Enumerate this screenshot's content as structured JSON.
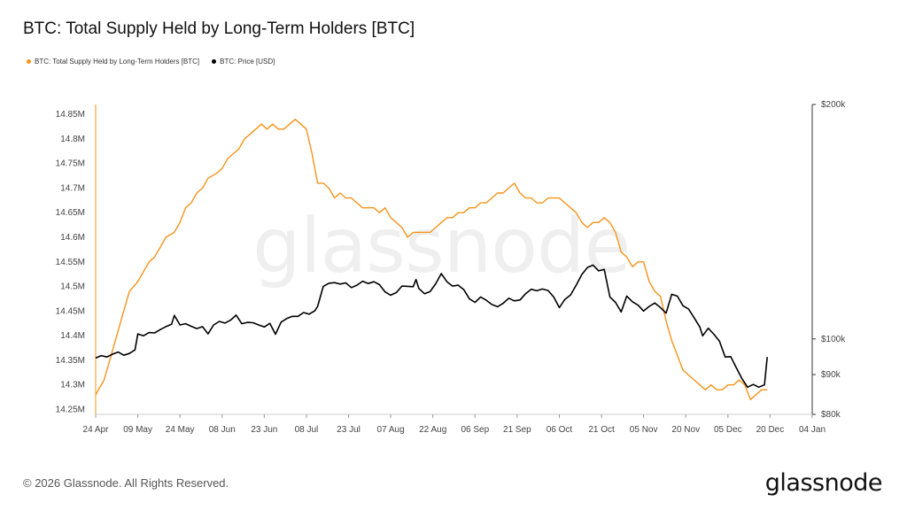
{
  "title": "BTC: Total Supply Held by Long-Term Holders [BTC]",
  "legend": [
    {
      "label": "BTC: Total Supply Held by Long-Term Holders [BTC]",
      "color": "#f7931a"
    },
    {
      "label": "BTC: Price [USD]",
      "color": "#000000"
    }
  ],
  "watermark": "glassnode",
  "footer": {
    "copyright": "© 2026 Glassnode. All Rights Reserved.",
    "brand": "glassnode"
  },
  "chart_data": {
    "type": "line",
    "x_ticks": [
      "24 Apr",
      "09 May",
      "24 May",
      "08 Jun",
      "23 Jun",
      "08 Jul",
      "23 Jul",
      "07 Aug",
      "22 Aug",
      "06 Sep",
      "21 Sep",
      "06 Oct",
      "21 Oct",
      "05 Nov",
      "20 Nov",
      "05 Dec",
      "20 Dec",
      "04 Jan"
    ],
    "y_left": {
      "ticks": [
        "14.25M",
        "14.3M",
        "14.35M",
        "14.4M",
        "14.45M",
        "14.5M",
        "14.55M",
        "14.6M",
        "14.65M",
        "14.7M",
        "14.75M",
        "14.8M",
        "14.85M"
      ],
      "range": [
        14.24,
        14.87
      ],
      "unit": "BTC"
    },
    "y_right": {
      "ticks": [
        "$80k",
        "$90k",
        "$100k",
        "$200k"
      ],
      "values": [
        80000,
        90000,
        100000,
        200000
      ],
      "scale": "log",
      "range": [
        80000,
        200000
      ],
      "unit": "USD"
    },
    "x_range_days": [
      0,
      255
    ],
    "series": [
      {
        "name": "BTC: Total Supply Held by Long-Term Holders [BTC]",
        "color": "#f7931a",
        "axis": "left",
        "points": [
          [
            0,
            14.28
          ],
          [
            3,
            14.31
          ],
          [
            5,
            14.35
          ],
          [
            7,
            14.39
          ],
          [
            10,
            14.45
          ],
          [
            12,
            14.49
          ],
          [
            15,
            14.51
          ],
          [
            17,
            14.53
          ],
          [
            19,
            14.55
          ],
          [
            21,
            14.56
          ],
          [
            23,
            14.58
          ],
          [
            25,
            14.6
          ],
          [
            28,
            14.61
          ],
          [
            30,
            14.63
          ],
          [
            32,
            14.66
          ],
          [
            34,
            14.67
          ],
          [
            36,
            14.69
          ],
          [
            38,
            14.7
          ],
          [
            40,
            14.72
          ],
          [
            43,
            14.73
          ],
          [
            45,
            14.74
          ],
          [
            47,
            14.76
          ],
          [
            49,
            14.77
          ],
          [
            51,
            14.78
          ],
          [
            53,
            14.8
          ],
          [
            55,
            14.81
          ],
          [
            57,
            14.82
          ],
          [
            59,
            14.83
          ],
          [
            61,
            14.82
          ],
          [
            63,
            14.83
          ],
          [
            65,
            14.82
          ],
          [
            67,
            14.82
          ],
          [
            69,
            14.83
          ],
          [
            71,
            14.84
          ],
          [
            73,
            14.83
          ],
          [
            75,
            14.82
          ],
          [
            77,
            14.77
          ],
          [
            79,
            14.71
          ],
          [
            81,
            14.71
          ],
          [
            83,
            14.7
          ],
          [
            85,
            14.68
          ],
          [
            87,
            14.69
          ],
          [
            89,
            14.68
          ],
          [
            91,
            14.68
          ],
          [
            93,
            14.67
          ],
          [
            95,
            14.66
          ],
          [
            97,
            14.66
          ],
          [
            99,
            14.66
          ],
          [
            101,
            14.65
          ],
          [
            103,
            14.66
          ],
          [
            105,
            14.64
          ],
          [
            107,
            14.63
          ],
          [
            109,
            14.62
          ],
          [
            111,
            14.6
          ],
          [
            113,
            14.61
          ],
          [
            115,
            14.61
          ],
          [
            117,
            14.61
          ],
          [
            119,
            14.61
          ],
          [
            121,
            14.62
          ],
          [
            123,
            14.63
          ],
          [
            125,
            14.64
          ],
          [
            127,
            14.64
          ],
          [
            129,
            14.65
          ],
          [
            131,
            14.65
          ],
          [
            133,
            14.66
          ],
          [
            135,
            14.66
          ],
          [
            137,
            14.67
          ],
          [
            139,
            14.67
          ],
          [
            141,
            14.68
          ],
          [
            143,
            14.69
          ],
          [
            145,
            14.69
          ],
          [
            147,
            14.7
          ],
          [
            149,
            14.71
          ],
          [
            151,
            14.69
          ],
          [
            153,
            14.68
          ],
          [
            155,
            14.68
          ],
          [
            157,
            14.67
          ],
          [
            159,
            14.67
          ],
          [
            161,
            14.68
          ],
          [
            163,
            14.68
          ],
          [
            165,
            14.68
          ],
          [
            167,
            14.67
          ],
          [
            169,
            14.66
          ],
          [
            171,
            14.65
          ],
          [
            173,
            14.63
          ],
          [
            175,
            14.62
          ],
          [
            177,
            14.63
          ],
          [
            179,
            14.63
          ],
          [
            181,
            14.64
          ],
          [
            183,
            14.63
          ],
          [
            185,
            14.61
          ],
          [
            187,
            14.57
          ],
          [
            189,
            14.56
          ],
          [
            191,
            14.54
          ],
          [
            193,
            14.55
          ],
          [
            195,
            14.55
          ],
          [
            197,
            14.51
          ],
          [
            199,
            14.49
          ],
          [
            201,
            14.48
          ],
          [
            203,
            14.43
          ],
          [
            205,
            14.39
          ],
          [
            207,
            14.36
          ],
          [
            209,
            14.33
          ],
          [
            211,
            14.32
          ],
          [
            213,
            14.31
          ],
          [
            215,
            14.3
          ],
          [
            217,
            14.29
          ],
          [
            219,
            14.3
          ],
          [
            221,
            14.29
          ],
          [
            223,
            14.29
          ],
          [
            225,
            14.3
          ],
          [
            227,
            14.3
          ],
          [
            229,
            14.31
          ],
          [
            231,
            14.3
          ],
          [
            233,
            14.27
          ],
          [
            235,
            14.28
          ],
          [
            237,
            14.29
          ],
          [
            239,
            14.29
          ]
        ]
      },
      {
        "name": "BTC: Price [USD]",
        "color": "#000000",
        "axis": "right",
        "points": [
          [
            0,
            94500
          ],
          [
            2,
            95200
          ],
          [
            4,
            94800
          ],
          [
            6,
            95600
          ],
          [
            8,
            96200
          ],
          [
            10,
            95300
          ],
          [
            12,
            95800
          ],
          [
            14,
            96800
          ],
          [
            15,
            101500
          ],
          [
            17,
            100900
          ],
          [
            19,
            101900
          ],
          [
            21,
            101800
          ],
          [
            23,
            102800
          ],
          [
            25,
            103700
          ],
          [
            27,
            104400
          ],
          [
            28,
            107200
          ],
          [
            30,
            104200
          ],
          [
            32,
            104600
          ],
          [
            34,
            103800
          ],
          [
            36,
            103100
          ],
          [
            38,
            103700
          ],
          [
            40,
            101500
          ],
          [
            42,
            104200
          ],
          [
            44,
            105300
          ],
          [
            46,
            104800
          ],
          [
            48,
            105700
          ],
          [
            50,
            107300
          ],
          [
            52,
            104600
          ],
          [
            54,
            105000
          ],
          [
            56,
            104900
          ],
          [
            58,
            104200
          ],
          [
            60,
            103600
          ],
          [
            62,
            104700
          ],
          [
            64,
            101400
          ],
          [
            66,
            105100
          ],
          [
            68,
            106200
          ],
          [
            70,
            106900
          ],
          [
            72,
            106900
          ],
          [
            74,
            108100
          ],
          [
            76,
            107600
          ],
          [
            78,
            108700
          ],
          [
            79,
            110100
          ],
          [
            81,
            116800
          ],
          [
            83,
            117900
          ],
          [
            85,
            118100
          ],
          [
            87,
            117600
          ],
          [
            89,
            118000
          ],
          [
            91,
            116400
          ],
          [
            93,
            117200
          ],
          [
            95,
            118600
          ],
          [
            97,
            117800
          ],
          [
            99,
            118400
          ],
          [
            101,
            117400
          ],
          [
            103,
            114900
          ],
          [
            105,
            113800
          ],
          [
            107,
            114700
          ],
          [
            109,
            116900
          ],
          [
            111,
            116800
          ],
          [
            113,
            116700
          ],
          [
            114,
            119200
          ],
          [
            115,
            116100
          ],
          [
            117,
            114300
          ],
          [
            119,
            115000
          ],
          [
            121,
            117700
          ],
          [
            123,
            121300
          ],
          [
            125,
            118400
          ],
          [
            127,
            116900
          ],
          [
            129,
            117200
          ],
          [
            131,
            115700
          ],
          [
            133,
            112600
          ],
          [
            135,
            111400
          ],
          [
            137,
            113200
          ],
          [
            139,
            112100
          ],
          [
            141,
            110700
          ],
          [
            143,
            110000
          ],
          [
            145,
            111100
          ],
          [
            147,
            112800
          ],
          [
            149,
            111900
          ],
          [
            151,
            112200
          ],
          [
            153,
            114300
          ],
          [
            155,
            115800
          ],
          [
            157,
            115300
          ],
          [
            159,
            115900
          ],
          [
            161,
            115400
          ],
          [
            163,
            113200
          ],
          [
            165,
            109700
          ],
          [
            167,
            112400
          ],
          [
            169,
            113900
          ],
          [
            171,
            117200
          ],
          [
            173,
            121000
          ],
          [
            175,
            123500
          ],
          [
            177,
            124400
          ],
          [
            179,
            122300
          ],
          [
            181,
            122800
          ],
          [
            183,
            113200
          ],
          [
            185,
            111400
          ],
          [
            187,
            108300
          ],
          [
            189,
            113500
          ],
          [
            191,
            111600
          ],
          [
            193,
            110500
          ],
          [
            195,
            108600
          ],
          [
            197,
            110100
          ],
          [
            199,
            111200
          ],
          [
            201,
            109700
          ],
          [
            203,
            107900
          ],
          [
            205,
            114100
          ],
          [
            207,
            113500
          ],
          [
            209,
            110300
          ],
          [
            211,
            109200
          ],
          [
            213,
            106400
          ],
          [
            215,
            103600
          ],
          [
            216,
            100900
          ],
          [
            218,
            103200
          ],
          [
            220,
            101400
          ],
          [
            222,
            99300
          ],
          [
            224,
            94800
          ],
          [
            226,
            94900
          ],
          [
            228,
            91800
          ],
          [
            230,
            88900
          ],
          [
            232,
            86700
          ],
          [
            234,
            87400
          ],
          [
            236,
            86700
          ],
          [
            238,
            87300
          ],
          [
            239,
            94800
          ]
        ]
      }
    ]
  }
}
